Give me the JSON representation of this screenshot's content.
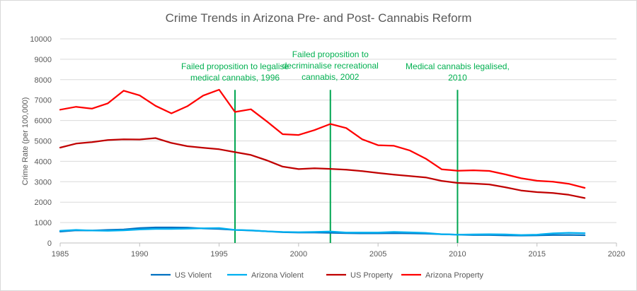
{
  "chart_data": {
    "type": "scatter",
    "title": "Crime Trends in Arizona Pre- and Post- Cannabis Reform",
    "xlabel": "",
    "ylabel": "Crime Rate (per 100,000)",
    "xlim": [
      1985,
      2020
    ],
    "ylim": [
      0,
      10000
    ],
    "x_ticks": [
      1985,
      1990,
      1995,
      2000,
      2005,
      2010,
      2015,
      2020
    ],
    "y_ticks": [
      0,
      1000,
      2000,
      3000,
      4000,
      5000,
      6000,
      7000,
      8000,
      9000,
      10000
    ],
    "grid": "horizontal",
    "legend_position": "bottom",
    "x": [
      1985,
      1986,
      1987,
      1988,
      1989,
      1990,
      1991,
      1992,
      1993,
      1994,
      1995,
      1996,
      1997,
      1998,
      1999,
      2000,
      2001,
      2002,
      2003,
      2004,
      2005,
      2006,
      2007,
      2008,
      2009,
      2010,
      2011,
      2012,
      2013,
      2014,
      2015,
      2016,
      2017,
      2018
    ],
    "series": [
      {
        "name": "US Violent",
        "color": "#0070c0",
        "values": [
          556,
          620,
          610,
          640,
          660,
          730,
          760,
          760,
          750,
          710,
          690,
          640,
          610,
          570,
          530,
          510,
          510,
          500,
          480,
          470,
          470,
          480,
          470,
          460,
          430,
          410,
          390,
          390,
          370,
          365,
          375,
          390,
          395,
          380
        ]
      },
      {
        "name": "Arizona Violent",
        "color": "#00b0f0",
        "values": [
          600,
          640,
          610,
          600,
          620,
          660,
          690,
          690,
          700,
          720,
          730,
          640,
          620,
          570,
          540,
          530,
          540,
          560,
          510,
          510,
          510,
          540,
          520,
          490,
          430,
          410,
          420,
          430,
          420,
          390,
          410,
          470,
          500,
          480
        ]
      },
      {
        "name": "US Property",
        "color": "#c00000",
        "values": [
          4670,
          4870,
          4940,
          5040,
          5080,
          5070,
          5140,
          4900,
          4740,
          4660,
          4590,
          4450,
          4310,
          4050,
          3740,
          3620,
          3660,
          3630,
          3590,
          3520,
          3430,
          3350,
          3280,
          3210,
          3040,
          2940,
          2910,
          2870,
          2730,
          2570,
          2490,
          2450,
          2360,
          2200
        ]
      },
      {
        "name": "Arizona Property",
        "color": "#ff0000",
        "values": [
          6530,
          6670,
          6580,
          6840,
          7460,
          7230,
          6720,
          6350,
          6700,
          7220,
          7510,
          6420,
          6550,
          5960,
          5330,
          5290,
          5530,
          5830,
          5630,
          5080,
          4790,
          4760,
          4530,
          4130,
          3610,
          3540,
          3560,
          3530,
          3360,
          3170,
          3050,
          3000,
          2900,
          2700
        ]
      }
    ],
    "annotations": [
      {
        "year": 1996,
        "lines": [
          "Failed proposition to legalise",
          "medical cannabis, 1996"
        ]
      },
      {
        "year": 2002,
        "lines": [
          "Failed proposition to",
          "decriminalise recreational",
          "cannabis, 2002"
        ]
      },
      {
        "year": 2010,
        "lines": [
          "Medical cannabis legalised,",
          "2010"
        ]
      }
    ],
    "annotation_color": "#00a651"
  }
}
